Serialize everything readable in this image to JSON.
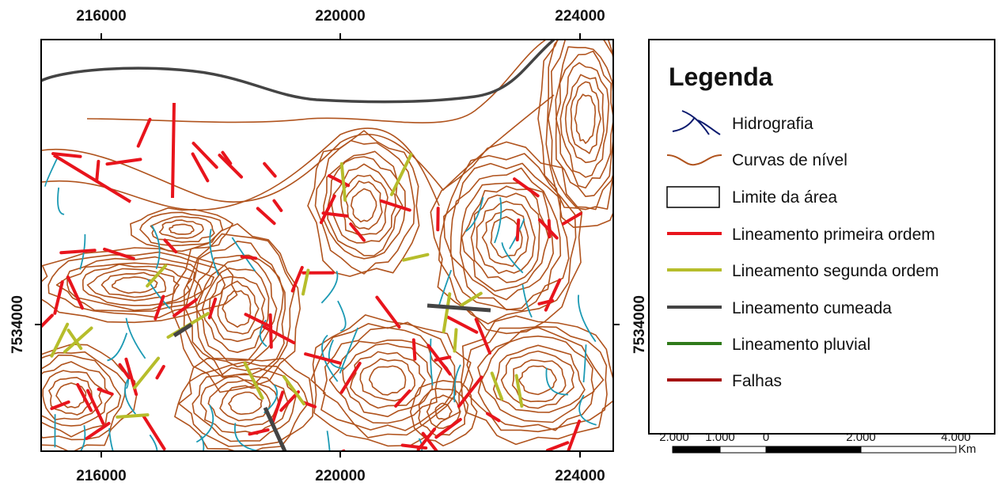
{
  "map": {
    "top_labels": [
      216000,
      220000,
      224000
    ],
    "bottom_labels": [
      216000,
      220000,
      224000
    ],
    "left_label": 7534000,
    "right_label": 7534000,
    "legend": {
      "title": "Legenda",
      "items": [
        "Hidrografia",
        "Curvas de nível",
        "Limite da área",
        "Lineamento primeira ordem",
        "Lineamento segunda ordem",
        "Lineamento cumeada",
        "Lineamento pluvial",
        "Falhas"
      ]
    },
    "scale_bar": {
      "labels": [
        "2.000",
        "1.000",
        "0",
        "2.000",
        "4.000"
      ],
      "unit": "Km"
    }
  }
}
